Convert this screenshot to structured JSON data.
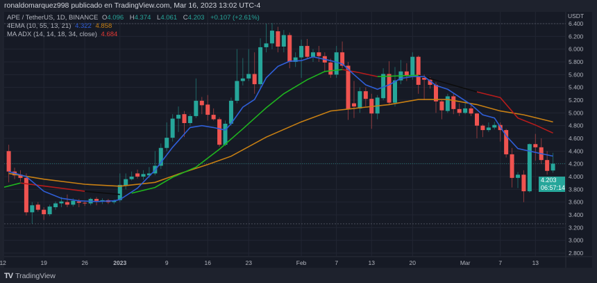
{
  "header": {
    "publisher": "ronaldomarquez998 publicado en TradingView.com, Mar 16, 2023 13:02 UTC-4"
  },
  "legend": {
    "symbol": "APE / TetherUS, 1D, BINANCE",
    "o_label": "O",
    "o": "4.096",
    "h_label": "H",
    "h": "4.374",
    "l_label": "L",
    "l": "4.061",
    "c_label": "C",
    "c": "4.203",
    "change": "+0.107 (+2.61%)",
    "ema_label": "4EMA (10, 55, 13, 21)",
    "ema_val1": "4.322",
    "ema_val2": "4.858",
    "adx_label": "MA ADX (14, 14, 18, 34, close)",
    "adx_val": "4.684"
  },
  "price_box": {
    "price": "4.203",
    "countdown": "06:57:14"
  },
  "footer": {
    "brand": "TradingView"
  },
  "colors": {
    "up": "#26a69a",
    "down": "#ef5350",
    "ema_fast": "#2f5fd8",
    "ema_slow": "#c98013",
    "ma_green": "#1fb51f",
    "ma_red": "#b71c1c",
    "ma_black": "#0c0c0c",
    "background": "#161a25"
  },
  "chart_data": {
    "type": "candlestick",
    "currency": "USDT",
    "ylim": [
      2.8,
      6.4
    ],
    "y_ticks": [
      "2.800",
      "3.000",
      "3.200",
      "3.400",
      "3.600",
      "3.800",
      "4.000",
      "4.200",
      "4.400",
      "4.600",
      "4.800",
      "5.000",
      "5.200",
      "5.400",
      "5.600",
      "5.800",
      "6.000",
      "6.200",
      "6.400"
    ],
    "x_ticks": [
      [
        "2022-12-12",
        "12"
      ],
      [
        "2022-12-19",
        "19"
      ],
      [
        "2022-12-26",
        "26"
      ],
      [
        "2023-01-01",
        "2023"
      ],
      [
        "2023-01-09",
        "9"
      ],
      [
        "2023-01-16",
        "16"
      ],
      [
        "2023-01-23",
        "23"
      ],
      [
        "2023-02-01",
        "Feb"
      ],
      [
        "2023-02-07",
        "7"
      ],
      [
        "2023-02-13",
        "13"
      ],
      [
        "2023-02-20",
        "20"
      ],
      [
        "2023-03-01",
        "Mar"
      ],
      [
        "2023-03-07",
        "7"
      ],
      [
        "2023-03-13",
        "13"
      ]
    ],
    "candles_columns": [
      "date",
      "open",
      "high",
      "low",
      "close"
    ],
    "candles": [
      [
        "2022-12-13",
        4.4,
        4.5,
        3.91,
        4.08
      ],
      [
        "2022-12-14",
        4.08,
        4.14,
        3.96,
        4.02
      ],
      [
        "2022-12-15",
        4.03,
        4.1,
        3.92,
        3.98
      ],
      [
        "2022-12-16",
        3.98,
        4.05,
        3.39,
        3.44
      ],
      [
        "2022-12-17",
        3.44,
        3.6,
        3.26,
        3.55
      ],
      [
        "2022-12-18",
        3.56,
        3.6,
        3.45,
        3.48
      ],
      [
        "2022-12-19",
        3.48,
        3.52,
        3.32,
        3.41
      ],
      [
        "2022-12-20",
        3.41,
        3.56,
        3.38,
        3.53
      ],
      [
        "2022-12-21",
        3.52,
        3.61,
        3.48,
        3.58
      ],
      [
        "2022-12-22",
        3.58,
        3.68,
        3.52,
        3.61
      ],
      [
        "2022-12-23",
        3.6,
        3.72,
        3.52,
        3.56
      ],
      [
        "2022-12-24",
        3.56,
        3.66,
        3.53,
        3.62
      ],
      [
        "2022-12-25",
        3.61,
        3.65,
        3.52,
        3.59
      ],
      [
        "2022-12-26",
        3.59,
        3.62,
        3.54,
        3.58
      ],
      [
        "2022-12-27",
        3.58,
        3.67,
        3.55,
        3.65
      ],
      [
        "2022-12-28",
        3.65,
        3.68,
        3.55,
        3.62
      ],
      [
        "2022-12-29",
        3.62,
        3.66,
        3.57,
        3.63
      ],
      [
        "2022-12-30",
        3.63,
        3.65,
        3.57,
        3.6
      ],
      [
        "2022-12-31",
        3.6,
        3.64,
        3.57,
        3.62
      ],
      [
        "2023-01-01",
        3.63,
        4.05,
        3.6,
        3.87
      ],
      [
        "2023-01-02",
        3.86,
        4.05,
        3.8,
        3.96
      ],
      [
        "2023-01-03",
        3.96,
        4.08,
        3.94,
        4.0
      ],
      [
        "2023-01-04",
        4.05,
        4.11,
        3.97,
        4.0
      ],
      [
        "2023-01-05",
        4.0,
        4.1,
        3.95,
        4.04
      ],
      [
        "2023-01-06",
        4.02,
        4.15,
        3.98,
        4.05
      ],
      [
        "2023-01-07",
        4.05,
        4.4,
        4.02,
        4.17
      ],
      [
        "2023-01-08",
        4.17,
        4.52,
        4.12,
        4.45
      ],
      [
        "2023-01-09",
        4.45,
        4.85,
        4.4,
        4.61
      ],
      [
        "2023-01-10",
        4.61,
        4.98,
        4.55,
        4.91
      ],
      [
        "2023-01-11",
        4.91,
        5.1,
        4.7,
        4.97
      ],
      [
        "2023-01-12",
        4.98,
        5.03,
        4.62,
        4.84
      ],
      [
        "2023-01-13",
        4.84,
        4.98,
        4.8,
        4.95
      ],
      [
        "2023-01-14",
        4.95,
        5.54,
        4.92,
        5.19
      ],
      [
        "2023-01-15",
        5.19,
        5.25,
        4.98,
        5.12
      ],
      [
        "2023-01-16",
        5.13,
        5.28,
        4.88,
        4.97
      ],
      [
        "2023-01-17",
        4.97,
        5.07,
        4.88,
        4.9
      ],
      [
        "2023-01-18",
        4.9,
        4.93,
        4.47,
        4.5
      ],
      [
        "2023-01-19",
        4.5,
        4.88,
        4.48,
        4.83
      ],
      [
        "2023-01-20",
        4.83,
        5.24,
        4.8,
        5.19
      ],
      [
        "2023-01-21",
        5.19,
        6.0,
        5.15,
        5.5
      ],
      [
        "2023-01-22",
        5.5,
        5.86,
        5.43,
        5.54
      ],
      [
        "2023-01-23",
        5.54,
        6.0,
        5.5,
        5.61
      ],
      [
        "2023-01-24",
        5.61,
        5.95,
        5.3,
        5.45
      ],
      [
        "2023-01-25",
        5.45,
        6.17,
        5.38,
        6.03
      ],
      [
        "2023-01-26",
        6.03,
        6.4,
        5.95,
        6.09
      ],
      [
        "2023-01-27",
        6.09,
        6.41,
        6.0,
        6.29
      ],
      [
        "2023-01-28",
        6.28,
        6.35,
        5.95,
        6.04
      ],
      [
        "2023-01-29",
        6.04,
        6.3,
        5.95,
        6.22
      ],
      [
        "2023-01-30",
        6.22,
        6.26,
        5.7,
        5.8
      ],
      [
        "2023-01-31",
        5.8,
        5.95,
        5.72,
        5.87
      ],
      [
        "2023-02-01",
        5.87,
        6.15,
        5.55,
        6.05
      ],
      [
        "2023-02-02",
        6.05,
        6.16,
        5.85,
        5.88
      ],
      [
        "2023-02-03",
        5.88,
        6.0,
        5.8,
        5.95
      ],
      [
        "2023-02-04",
        5.95,
        6.05,
        5.8,
        5.89
      ],
      [
        "2023-02-05",
        5.89,
        5.95,
        5.65,
        5.79
      ],
      [
        "2023-02-06",
        5.79,
        5.85,
        5.55,
        5.6
      ],
      [
        "2023-02-07",
        5.6,
        6.05,
        5.55,
        5.95
      ],
      [
        "2023-02-08",
        5.95,
        6.12,
        5.7,
        5.74
      ],
      [
        "2023-02-09",
        5.74,
        5.8,
        4.89,
        5.06
      ],
      [
        "2023-02-10",
        5.15,
        5.5,
        4.92,
        5.1
      ],
      [
        "2023-02-11",
        5.07,
        5.4,
        5.0,
        5.34
      ],
      [
        "2023-02-12",
        5.34,
        5.4,
        5.1,
        5.22
      ],
      [
        "2023-02-13",
        5.22,
        5.3,
        4.75,
        4.99
      ],
      [
        "2023-02-14",
        4.99,
        5.28,
        4.9,
        5.24
      ],
      [
        "2023-02-15",
        5.23,
        5.7,
        5.2,
        5.61
      ],
      [
        "2023-02-16",
        5.61,
        5.81,
        5.12,
        5.16
      ],
      [
        "2023-02-17",
        5.16,
        5.72,
        5.1,
        5.51
      ],
      [
        "2023-02-18",
        5.51,
        5.83,
        5.45,
        5.65
      ],
      [
        "2023-02-19",
        5.65,
        5.78,
        5.5,
        5.58
      ],
      [
        "2023-02-20",
        5.58,
        5.95,
        5.52,
        5.88
      ],
      [
        "2023-02-21",
        5.88,
        5.9,
        5.3,
        5.44
      ],
      [
        "2023-02-22",
        5.55,
        5.6,
        5.2,
        5.52
      ],
      [
        "2023-02-23",
        5.52,
        5.56,
        5.38,
        5.44
      ],
      [
        "2023-02-24",
        5.44,
        5.48,
        5.0,
        5.18
      ],
      [
        "2023-02-25",
        5.18,
        5.2,
        4.9,
        5.04
      ],
      [
        "2023-02-26",
        5.03,
        5.3,
        5.0,
        5.26
      ],
      [
        "2023-02-27",
        5.26,
        5.3,
        4.98,
        5.06
      ],
      [
        "2023-02-28",
        5.06,
        5.15,
        4.95,
        5.0
      ],
      [
        "2023-03-01",
        5.0,
        5.2,
        4.98,
        5.07
      ],
      [
        "2023-03-02",
        5.07,
        5.12,
        4.95,
        4.99
      ],
      [
        "2023-03-03",
        4.99,
        5.0,
        4.6,
        4.8
      ],
      [
        "2023-03-04",
        4.8,
        4.82,
        4.62,
        4.73
      ],
      [
        "2023-03-05",
        4.73,
        4.85,
        4.7,
        4.77
      ],
      [
        "2023-03-06",
        4.77,
        4.86,
        4.74,
        4.81
      ],
      [
        "2023-03-07",
        4.81,
        4.85,
        4.55,
        4.73
      ],
      [
        "2023-03-08",
        4.73,
        4.75,
        4.3,
        4.35
      ],
      [
        "2023-03-09",
        4.35,
        4.45,
        3.83,
        3.98
      ],
      [
        "2023-03-10",
        3.98,
        4.07,
        3.82,
        4.03
      ],
      [
        "2023-03-11",
        4.03,
        4.1,
        3.6,
        3.77
      ],
      [
        "2023-03-12",
        3.77,
        4.52,
        3.75,
        4.51
      ],
      [
        "2023-03-13",
        4.51,
        4.67,
        4.25,
        4.46
      ],
      [
        "2023-03-14",
        4.46,
        4.6,
        4.2,
        4.26
      ],
      [
        "2023-03-15",
        4.26,
        4.4,
        4.03,
        4.09
      ],
      [
        "2023-03-16",
        4.096,
        4.374,
        4.061,
        4.203
      ]
    ],
    "last_price": 4.203,
    "ema_fast": [
      [
        "2022-12-13",
        4.08
      ],
      [
        "2022-12-16",
        4.0
      ],
      [
        "2022-12-19",
        3.77
      ],
      [
        "2022-12-22",
        3.66
      ],
      [
        "2022-12-25",
        3.62
      ],
      [
        "2022-12-28",
        3.61
      ],
      [
        "2022-12-31",
        3.62
      ],
      [
        "2023-01-01",
        3.64
      ],
      [
        "2023-01-04",
        3.82
      ],
      [
        "2023-01-07",
        4.1
      ],
      [
        "2023-01-10",
        4.46
      ],
      [
        "2023-01-13",
        4.77
      ],
      [
        "2023-01-15",
        4.8
      ],
      [
        "2023-01-17",
        4.77
      ],
      [
        "2023-01-19",
        4.73
      ],
      [
        "2023-01-20",
        4.83
      ],
      [
        "2023-01-22",
        5.09
      ],
      [
        "2023-01-24",
        5.21
      ],
      [
        "2023-01-26",
        5.55
      ],
      [
        "2023-01-28",
        5.73
      ],
      [
        "2023-01-30",
        5.81
      ],
      [
        "2023-02-01",
        5.82
      ],
      [
        "2023-02-03",
        5.88
      ],
      [
        "2023-02-06",
        5.82
      ],
      [
        "2023-02-08",
        5.77
      ],
      [
        "2023-02-10",
        5.6
      ],
      [
        "2023-02-12",
        5.44
      ],
      [
        "2023-02-14",
        5.37
      ],
      [
        "2023-02-16",
        5.44
      ],
      [
        "2023-02-18",
        5.54
      ],
      [
        "2023-02-20",
        5.57
      ],
      [
        "2023-02-22",
        5.57
      ],
      [
        "2023-02-24",
        5.43
      ],
      [
        "2023-02-26",
        5.37
      ],
      [
        "2023-02-28",
        5.25
      ],
      [
        "2023-03-02",
        5.13
      ],
      [
        "2023-03-04",
        4.97
      ],
      [
        "2023-03-06",
        4.92
      ],
      [
        "2023-03-08",
        4.64
      ],
      [
        "2023-03-10",
        4.44
      ],
      [
        "2023-03-12",
        4.4
      ],
      [
        "2023-03-14",
        4.36
      ],
      [
        "2023-03-16",
        4.322
      ]
    ],
    "ema_slow": [
      [
        "2022-12-13",
        4.05
      ],
      [
        "2022-12-19",
        3.96
      ],
      [
        "2022-12-26",
        3.88
      ],
      [
        "2023-01-01",
        3.85
      ],
      [
        "2023-01-07",
        3.91
      ],
      [
        "2023-01-11",
        4.04
      ],
      [
        "2023-01-16",
        4.19
      ],
      [
        "2023-01-20",
        4.32
      ],
      [
        "2023-01-26",
        4.62
      ],
      [
        "2023-02-01",
        4.86
      ],
      [
        "2023-02-06",
        5.03
      ],
      [
        "2023-02-11",
        5.08
      ],
      [
        "2023-02-16",
        5.13
      ],
      [
        "2023-02-21",
        5.21
      ],
      [
        "2023-02-26",
        5.21
      ],
      [
        "2023-03-03",
        5.13
      ],
      [
        "2023-03-07",
        5.03
      ],
      [
        "2023-03-11",
        4.97
      ],
      [
        "2023-03-16",
        4.858
      ]
    ],
    "ma_adx_segments": [
      {
        "state": "green",
        "points": [
          [
            "2022-12-12",
            3.83
          ],
          [
            "2022-12-15",
            3.9
          ]
        ]
      },
      {
        "state": "red",
        "points": [
          [
            "2022-12-15",
            3.9
          ],
          [
            "2022-12-26",
            3.77
          ]
        ]
      },
      {
        "state": "black",
        "points": [
          [
            "2022-12-26",
            3.77
          ],
          [
            "2023-01-01",
            3.72
          ]
        ]
      },
      {
        "state": "green",
        "points": [
          [
            "2023-01-03",
            3.74
          ],
          [
            "2023-01-07",
            3.83
          ],
          [
            "2023-01-10",
            3.99
          ],
          [
            "2023-01-14",
            4.15
          ],
          [
            "2023-01-18",
            4.43
          ],
          [
            "2023-01-22",
            4.75
          ],
          [
            "2023-01-26",
            5.08
          ],
          [
            "2023-01-29",
            5.3
          ],
          [
            "2023-02-02",
            5.52
          ],
          [
            "2023-02-05",
            5.65
          ],
          [
            "2023-02-08",
            5.68
          ]
        ]
      },
      {
        "state": "red",
        "points": [
          [
            "2023-02-08",
            5.68
          ],
          [
            "2023-02-11",
            5.63
          ],
          [
            "2023-02-14",
            5.57
          ]
        ]
      },
      {
        "state": "green",
        "points": [
          [
            "2023-02-14",
            5.57
          ],
          [
            "2023-02-21",
            5.59
          ]
        ]
      },
      {
        "state": "black",
        "points": [
          [
            "2023-02-21",
            5.59
          ],
          [
            "2023-03-03",
            5.33
          ]
        ]
      },
      {
        "state": "red",
        "points": [
          [
            "2023-03-03",
            5.33
          ],
          [
            "2023-03-07",
            5.24
          ],
          [
            "2023-03-10",
            4.92
          ],
          [
            "2023-03-13",
            4.81
          ],
          [
            "2023-03-16",
            4.684
          ]
        ]
      }
    ]
  }
}
